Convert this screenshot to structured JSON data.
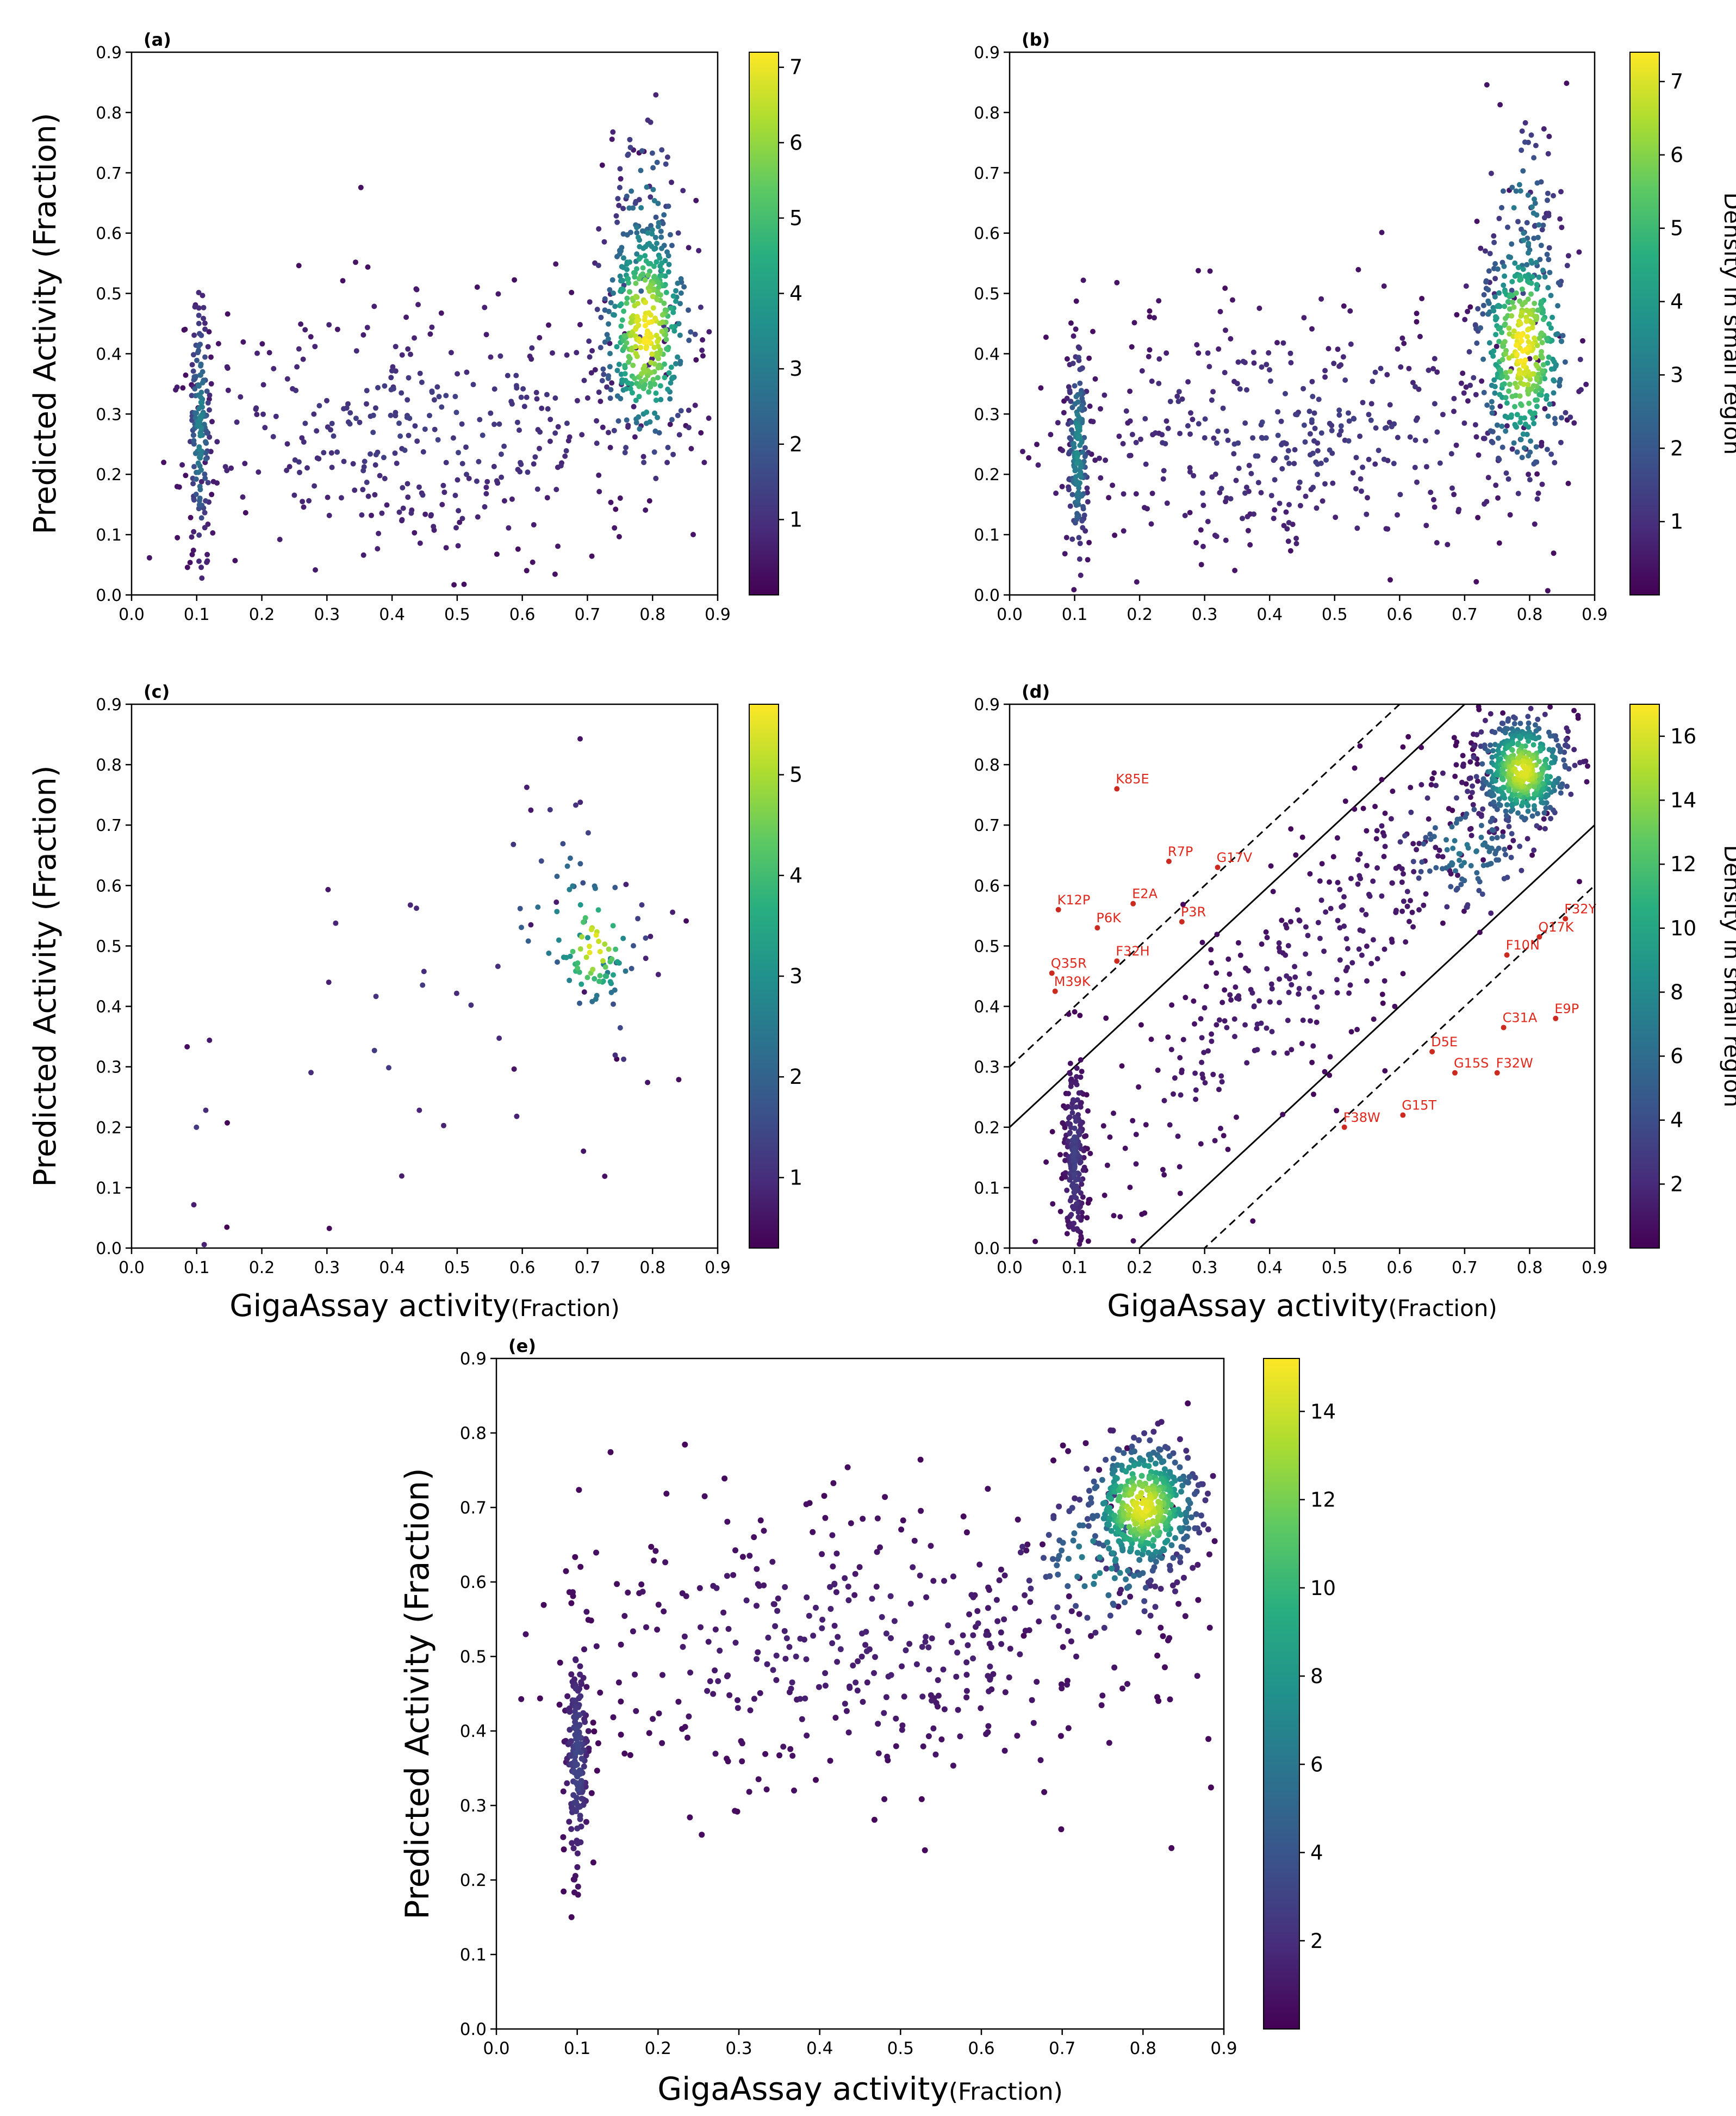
{
  "figure": {
    "x_axis_label": "GigaAssay activity",
    "x_axis_unit": "(Fraction)",
    "y_axis_label": "Predicted Activity (Fraction)",
    "colorbar_label": "Density in small region"
  },
  "chart_data": [
    {
      "id": "a",
      "panel_label": "(a)",
      "type": "scatter",
      "xlim": [
        0.0,
        0.9
      ],
      "ylim": [
        0.0,
        0.9
      ],
      "xticks": [
        "0.0",
        "0.1",
        "0.2",
        "0.3",
        "0.4",
        "0.5",
        "0.6",
        "0.7",
        "0.8",
        "0.9"
      ],
      "yticks": [
        "0.0",
        "0.1",
        "0.2",
        "0.3",
        "0.4",
        "0.5",
        "0.6",
        "0.7",
        "0.8",
        "0.9"
      ],
      "show_xlabel": false,
      "show_ylabel": true,
      "colorbar_title": false,
      "colorbar": {
        "min": 0,
        "max": 7.2,
        "ticks": [
          "1",
          "2",
          "3",
          "4",
          "5",
          "6",
          "7"
        ]
      },
      "density": {
        "n_points": 1050,
        "clusters": [
          {
            "x": 0.105,
            "y": 0.28,
            "sx": 0.008,
            "sy": 0.11,
            "weight": 0.16,
            "density": 3.0
          },
          {
            "x": 0.79,
            "y": 0.44,
            "sx": 0.035,
            "sy": 0.1,
            "weight": 0.4,
            "density": 7.0
          },
          {
            "x": 0.79,
            "y": 0.6,
            "sx": 0.03,
            "sy": 0.1,
            "weight": 0.06,
            "density": 3.2
          },
          {
            "x": 0.45,
            "y": 0.28,
            "sx": 0.22,
            "sy": 0.11,
            "weight": 0.38,
            "density": 1.1
          }
        ]
      }
    },
    {
      "id": "b",
      "panel_label": "(b)",
      "type": "scatter",
      "xlim": [
        0.0,
        0.9
      ],
      "ylim": [
        0.0,
        0.9
      ],
      "xticks": [
        "0.0",
        "0.1",
        "0.2",
        "0.3",
        "0.4",
        "0.5",
        "0.6",
        "0.7",
        "0.8",
        "0.9"
      ],
      "yticks": [
        "0.0",
        "0.1",
        "0.2",
        "0.3",
        "0.4",
        "0.5",
        "0.6",
        "0.7",
        "0.8",
        "0.9"
      ],
      "show_xlabel": false,
      "show_ylabel": false,
      "colorbar_title": true,
      "colorbar": {
        "min": 0,
        "max": 7.4,
        "ticks": [
          "1",
          "2",
          "3",
          "4",
          "5",
          "6",
          "7"
        ]
      },
      "density": {
        "n_points": 1100,
        "clusters": [
          {
            "x": 0.105,
            "y": 0.24,
            "sx": 0.008,
            "sy": 0.09,
            "weight": 0.16,
            "density": 3.4
          },
          {
            "x": 0.79,
            "y": 0.41,
            "sx": 0.035,
            "sy": 0.1,
            "weight": 0.4,
            "density": 7.2
          },
          {
            "x": 0.79,
            "y": 0.62,
            "sx": 0.03,
            "sy": 0.09,
            "weight": 0.06,
            "density": 3.0
          },
          {
            "x": 0.45,
            "y": 0.27,
            "sx": 0.22,
            "sy": 0.11,
            "weight": 0.38,
            "density": 1.1
          }
        ]
      }
    },
    {
      "id": "c",
      "panel_label": "(c)",
      "type": "scatter",
      "xlim": [
        0.0,
        0.9
      ],
      "ylim": [
        0.0,
        0.9
      ],
      "xticks": [
        "0.0",
        "0.1",
        "0.2",
        "0.3",
        "0.4",
        "0.5",
        "0.6",
        "0.7",
        "0.8",
        "0.9"
      ],
      "yticks": [
        "0.0",
        "0.1",
        "0.2",
        "0.3",
        "0.4",
        "0.5",
        "0.6",
        "0.7",
        "0.8",
        "0.9"
      ],
      "show_xlabel": true,
      "show_ylabel": true,
      "colorbar_title": false,
      "colorbar": {
        "min": 0.3,
        "max": 5.7,
        "ticks": [
          "1",
          "2",
          "3",
          "4",
          "5"
        ]
      },
      "density": {
        "n_points": 150,
        "clusters": [
          {
            "x": 0.71,
            "y": 0.5,
            "sx": 0.035,
            "sy": 0.06,
            "weight": 0.45,
            "density": 5.3
          },
          {
            "x": 0.68,
            "y": 0.5,
            "sx": 0.07,
            "sy": 0.13,
            "weight": 0.3,
            "density": 2.8
          },
          {
            "x": 0.11,
            "y": 0.15,
            "sx": 0.02,
            "sy": 0.14,
            "weight": 0.08,
            "density": 1.0
          },
          {
            "x": 0.45,
            "y": 0.35,
            "sx": 0.2,
            "sy": 0.18,
            "weight": 0.17,
            "density": 1.0
          }
        ]
      }
    },
    {
      "id": "d",
      "panel_label": "(d)",
      "type": "scatter",
      "xlim": [
        0.0,
        0.9
      ],
      "ylim": [
        0.0,
        0.9
      ],
      "xticks": [
        "0.0",
        "0.1",
        "0.2",
        "0.3",
        "0.4",
        "0.5",
        "0.6",
        "0.7",
        "0.8",
        "0.9"
      ],
      "yticks": [
        "0.0",
        "0.1",
        "0.2",
        "0.3",
        "0.4",
        "0.5",
        "0.6",
        "0.7",
        "0.8",
        "0.9"
      ],
      "show_xlabel": true,
      "show_ylabel": false,
      "colorbar_title": true,
      "colorbar": {
        "min": 0,
        "max": 17,
        "ticks": [
          "2",
          "4",
          "6",
          "8",
          "10",
          "12",
          "14",
          "16"
        ]
      },
      "reference_lines": [
        {
          "style": "solid",
          "intercept": 0.2
        },
        {
          "style": "solid",
          "intercept": -0.2
        },
        {
          "style": "dashed",
          "intercept": 0.3
        },
        {
          "style": "dashed",
          "intercept": -0.3
        }
      ],
      "density": {
        "n_points": 1200,
        "clusters": [
          {
            "x": 0.1,
            "y": 0.15,
            "sx": 0.008,
            "sy": 0.08,
            "weight": 0.18,
            "density": 3.0
          },
          {
            "x": 0.79,
            "y": 0.79,
            "sx": 0.035,
            "sy": 0.045,
            "weight": 0.42,
            "density": 16.0
          },
          {
            "x": 0.7,
            "y": 0.66,
            "sx": 0.06,
            "sy": 0.06,
            "weight": 0.1,
            "density": 6.5
          },
          {
            "x": 0.45,
            "y": 0.45,
            "sx": 0.2,
            "sy": 0.1,
            "weight": 0.3,
            "density": 1.3,
            "diagonal": true
          }
        ]
      },
      "annotations": [
        {
          "label": "K85E",
          "x": 0.165,
          "y": 0.76
        },
        {
          "label": "R7P",
          "x": 0.245,
          "y": 0.64
        },
        {
          "label": "G17V",
          "x": 0.32,
          "y": 0.63
        },
        {
          "label": "E2A",
          "x": 0.19,
          "y": 0.57
        },
        {
          "label": "K12P",
          "x": 0.075,
          "y": 0.56
        },
        {
          "label": "P6K",
          "x": 0.135,
          "y": 0.53
        },
        {
          "label": "P3R",
          "x": 0.265,
          "y": 0.54
        },
        {
          "label": "F32H",
          "x": 0.165,
          "y": 0.475
        },
        {
          "label": "Q35R",
          "x": 0.065,
          "y": 0.455
        },
        {
          "label": "M39K",
          "x": 0.07,
          "y": 0.425
        },
        {
          "label": "F32Y",
          "x": 0.855,
          "y": 0.545
        },
        {
          "label": "Q17K",
          "x": 0.815,
          "y": 0.515
        },
        {
          "label": "F10N",
          "x": 0.765,
          "y": 0.485
        },
        {
          "label": "E9P",
          "x": 0.84,
          "y": 0.38
        },
        {
          "label": "C31A",
          "x": 0.76,
          "y": 0.365
        },
        {
          "label": "D5E",
          "x": 0.65,
          "y": 0.325
        },
        {
          "label": "G15S",
          "x": 0.685,
          "y": 0.29
        },
        {
          "label": "F32W",
          "x": 0.75,
          "y": 0.29
        },
        {
          "label": "G15T",
          "x": 0.605,
          "y": 0.22
        },
        {
          "label": "F38W",
          "x": 0.515,
          "y": 0.2
        }
      ]
    },
    {
      "id": "e",
      "panel_label": "(e)",
      "type": "scatter",
      "xlim": [
        0.0,
        0.9
      ],
      "ylim": [
        0.0,
        0.9
      ],
      "xticks": [
        "0.0",
        "0.1",
        "0.2",
        "0.3",
        "0.4",
        "0.5",
        "0.6",
        "0.7",
        "0.8",
        "0.9"
      ],
      "yticks": [
        "0.0",
        "0.1",
        "0.2",
        "0.3",
        "0.4",
        "0.5",
        "0.6",
        "0.7",
        "0.8",
        "0.9"
      ],
      "show_xlabel": true,
      "show_ylabel": true,
      "colorbar_title": false,
      "colorbar": {
        "min": 0,
        "max": 15.2,
        "ticks": [
          "2",
          "4",
          "6",
          "8",
          "10",
          "12",
          "14"
        ]
      },
      "density": {
        "n_points": 1150,
        "clusters": [
          {
            "x": 0.1,
            "y": 0.36,
            "sx": 0.008,
            "sy": 0.08,
            "weight": 0.16,
            "density": 3.0
          },
          {
            "x": 0.8,
            "y": 0.7,
            "sx": 0.035,
            "sy": 0.045,
            "weight": 0.4,
            "density": 14.5
          },
          {
            "x": 0.75,
            "y": 0.63,
            "sx": 0.05,
            "sy": 0.05,
            "weight": 0.08,
            "density": 7.0
          },
          {
            "x": 0.45,
            "y": 0.52,
            "sx": 0.22,
            "sy": 0.1,
            "weight": 0.36,
            "density": 1.2
          }
        ]
      }
    }
  ]
}
